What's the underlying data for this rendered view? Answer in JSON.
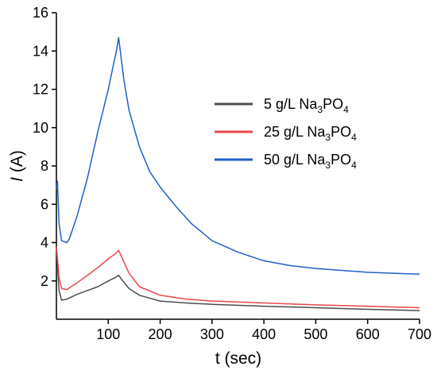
{
  "chart_data": {
    "type": "line",
    "xlabel": "t (sec)",
    "ylabel_italic": "I",
    "ylabel_rest": " (A)",
    "xlim": [
      0,
      700
    ],
    "ylim": [
      0,
      16
    ],
    "x_ticks": [
      100,
      200,
      300,
      400,
      500,
      600,
      700
    ],
    "y_ticks": [
      2,
      4,
      6,
      8,
      10,
      12,
      14,
      16
    ],
    "grid": false,
    "legend_position": "top-right",
    "series": [
      {
        "name_prefix": "5 g/L Na",
        "name_sub1": "3",
        "name_mid": "PO",
        "name_sub2": "4",
        "color": "#4d4d4d",
        "x": [
          0,
          2,
          5,
          10,
          20,
          40,
          60,
          80,
          100,
          115,
          120,
          125,
          140,
          160,
          200,
          250,
          300,
          400,
          500,
          600,
          700
        ],
        "y": [
          3.8,
          2.8,
          1.5,
          1.0,
          1.05,
          1.3,
          1.5,
          1.7,
          2.0,
          2.2,
          2.3,
          2.1,
          1.6,
          1.25,
          0.95,
          0.85,
          0.78,
          0.68,
          0.6,
          0.52,
          0.45
        ]
      },
      {
        "name_prefix": "25 g/L Na",
        "name_sub1": "3",
        "name_mid": "PO",
        "name_sub2": "4",
        "color": "#e8474a",
        "x": [
          0,
          2,
          5,
          10,
          20,
          40,
          60,
          80,
          100,
          115,
          120,
          125,
          140,
          160,
          200,
          250,
          300,
          400,
          500,
          600,
          700
        ],
        "y": [
          3.8,
          3.2,
          2.2,
          1.6,
          1.55,
          1.9,
          2.3,
          2.7,
          3.15,
          3.45,
          3.6,
          3.3,
          2.4,
          1.7,
          1.25,
          1.05,
          0.95,
          0.85,
          0.75,
          0.68,
          0.6
        ]
      },
      {
        "name_prefix": "50 g/L Na",
        "name_sub1": "3",
        "name_mid": "PO",
        "name_sub2": "4",
        "color": "#1f5fc8",
        "x": [
          0,
          2,
          5,
          10,
          20,
          25,
          40,
          60,
          80,
          100,
          110,
          115,
          120,
          125,
          130,
          140,
          160,
          180,
          200,
          230,
          260,
          300,
          350,
          400,
          450,
          500,
          550,
          600,
          650,
          700
        ],
        "y": [
          6.8,
          7.2,
          5.0,
          4.1,
          4.0,
          4.2,
          5.4,
          7.4,
          9.8,
          12.0,
          13.3,
          13.9,
          14.7,
          13.6,
          12.5,
          10.9,
          9.0,
          7.7,
          6.9,
          5.9,
          5.0,
          4.1,
          3.5,
          3.05,
          2.8,
          2.65,
          2.55,
          2.45,
          2.4,
          2.35
        ]
      }
    ]
  }
}
